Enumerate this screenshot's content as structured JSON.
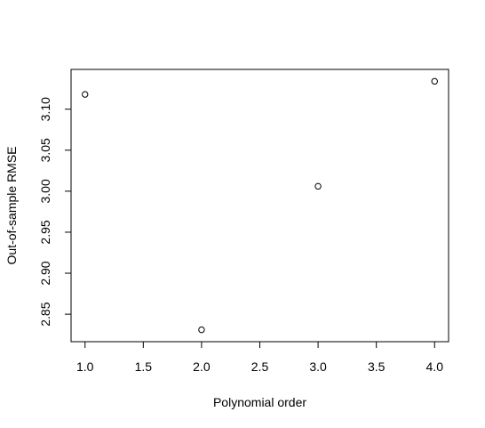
{
  "chart_data": {
    "type": "scatter",
    "title": "",
    "xlabel": "Polynomial order",
    "ylabel": "Out-of-sample RMSE",
    "xlim": [
      0.88,
      4.12
    ],
    "ylim": [
      2.8165,
      3.1485
    ],
    "x_ticks": [
      1.0,
      1.5,
      2.0,
      2.5,
      3.0,
      3.5,
      4.0
    ],
    "x_tick_labels": [
      "1.0",
      "1.5",
      "2.0",
      "2.5",
      "3.0",
      "3.5",
      "4.0"
    ],
    "y_ticks": [
      2.85,
      2.9,
      2.95,
      3.0,
      3.05,
      3.1
    ],
    "y_tick_labels": [
      "2.85",
      "2.90",
      "2.95",
      "3.00",
      "3.05",
      "3.10"
    ],
    "grid": false,
    "legend": "none",
    "marker": "open-circle",
    "colors": {
      "points": "#000000",
      "axes": "#000000",
      "background": "#ffffff"
    },
    "points": [
      {
        "x": 1,
        "y": 3.118
      },
      {
        "x": 2,
        "y": 2.831
      },
      {
        "x": 3,
        "y": 3.006
      },
      {
        "x": 4,
        "y": 3.134
      }
    ]
  }
}
